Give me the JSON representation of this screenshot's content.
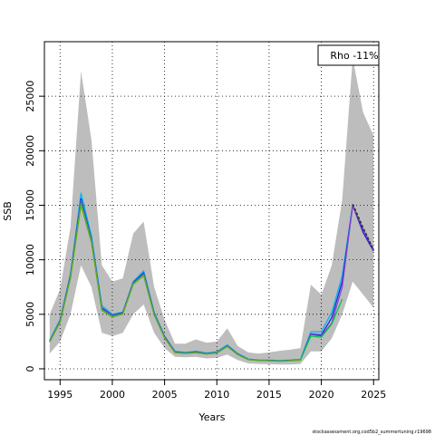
{
  "chart_data": {
    "type": "line",
    "title": "",
    "xlabel": "Years",
    "ylabel": "SSB",
    "xlim": [
      1993.5,
      2025.5
    ],
    "ylim": [
      -1000,
      30000
    ],
    "x_ticks": [
      1995,
      2000,
      2005,
      2010,
      2015,
      2020,
      2025
    ],
    "y_ticks": [
      0,
      5000,
      10000,
      15000,
      20000,
      25000
    ],
    "grid": "dotted",
    "legend": {
      "position": "top-right",
      "text": "Rho -11%"
    },
    "caption": "stockassessment.org,cod5b2_summertuning.r19698",
    "band": {
      "x": [
        1994,
        1995,
        1996,
        1997,
        1998,
        1999,
        2000,
        2001,
        2002,
        2003,
        2004,
        2005,
        2006,
        2007,
        2008,
        2009,
        2010,
        2011,
        2012,
        2013,
        2014,
        2015,
        2016,
        2017,
        2018,
        2019,
        2020,
        2021,
        2022,
        2023,
        2024,
        2025
      ],
      "lower": [
        1400,
        2500,
        5000,
        9500,
        7500,
        3300,
        3000,
        3300,
        5000,
        5900,
        3300,
        1900,
        1100,
        1050,
        1100,
        950,
        1000,
        1300,
        800,
        500,
        450,
        420,
        400,
        400,
        450,
        1600,
        1600,
        2800,
        5000,
        8000,
        6800,
        5600
      ],
      "upper": [
        5000,
        7300,
        13000,
        27300,
        21000,
        9500,
        8000,
        8300,
        12400,
        13500,
        7500,
        4500,
        2300,
        2300,
        2700,
        2400,
        2500,
        3700,
        2100,
        1500,
        1400,
        1500,
        1650,
        1750,
        1900,
        7700,
        6800,
        9500,
        15500,
        28500,
        23500,
        21400
      ]
    },
    "series": [
      {
        "color": "#00b8f0",
        "x": [
          1994,
          1995,
          1996,
          1997,
          1998,
          1999,
          2000,
          2001,
          2002,
          2003,
          2004,
          2005,
          2006,
          2007,
          2008,
          2009,
          2010,
          2011,
          2012,
          2013,
          2014,
          2015,
          2016,
          2017,
          2018,
          2019,
          2020,
          2021,
          2022,
          2023
        ],
        "values": [
          2600,
          4500,
          8700,
          16100,
          12200,
          5800,
          5000,
          5200,
          8000,
          9000,
          5200,
          3000,
          1600,
          1500,
          1600,
          1450,
          1550,
          2200,
          1400,
          900,
          800,
          800,
          750,
          800,
          850,
          3400,
          3400,
          5200,
          8500,
          15100
        ]
      },
      {
        "color": "#2222dd",
        "x": [
          1994,
          1995,
          1996,
          1997,
          1998,
          1999,
          2000,
          2001,
          2002,
          2003,
          2004,
          2005,
          2006,
          2007,
          2008,
          2009,
          2010,
          2011,
          2012,
          2013,
          2014,
          2015,
          2016,
          2017,
          2018,
          2019,
          2020,
          2021,
          2022,
          2023,
          2024,
          2025
        ],
        "values": [
          2550,
          4400,
          8600,
          15600,
          11900,
          5600,
          4900,
          5150,
          7900,
          8800,
          5100,
          2950,
          1550,
          1450,
          1550,
          1400,
          1500,
          2100,
          1350,
          870,
          780,
          770,
          720,
          770,
          820,
          3200,
          3100,
          4700,
          8000,
          15000,
          12500,
          10800
        ]
      },
      {
        "color": "#8844cc",
        "x": [
          1994,
          1995,
          1996,
          1997,
          1998,
          1999,
          2000,
          2001,
          2002,
          2003,
          2004,
          2005,
          2006,
          2007,
          2008,
          2009,
          2010,
          2011,
          2012,
          2013,
          2014,
          2015,
          2016,
          2017,
          2018,
          2019,
          2020,
          2021,
          2022,
          2023,
          2024,
          2025
        ],
        "values": [
          2520,
          4350,
          8500,
          15400,
          11800,
          5500,
          4850,
          5100,
          7850,
          8700,
          5050,
          2900,
          1520,
          1430,
          1520,
          1380,
          1480,
          2080,
          1330,
          860,
          770,
          760,
          710,
          760,
          810,
          3150,
          3000,
          4200,
          7500,
          15000,
          12800,
          10900
        ]
      },
      {
        "color": "#333333",
        "x": [
          2023,
          2024,
          2025
        ],
        "values": [
          15100,
          12900,
          10900
        ]
      },
      {
        "color": "#00cc44",
        "x": [
          1994,
          1995,
          1996,
          1997,
          1998,
          1999,
          2000,
          2001,
          2002,
          2003,
          2004,
          2005,
          2006,
          2007,
          2008,
          2009,
          2010,
          2011,
          2012,
          2013,
          2014,
          2015,
          2016,
          2017,
          2018,
          2019,
          2020,
          2021,
          2022
        ],
        "values": [
          2500,
          4300,
          8400,
          15200,
          11700,
          5400,
          4800,
          5050,
          7800,
          8600,
          5000,
          2850,
          1500,
          1420,
          1500,
          1370,
          1460,
          2050,
          1310,
          850,
          760,
          750,
          700,
          750,
          800,
          3000,
          2900,
          4100,
          6400
        ]
      },
      {
        "color": "#66aa22",
        "x": [
          1994,
          1995,
          1996,
          1997,
          1998,
          1999,
          2000,
          2001,
          2002,
          2003,
          2004,
          2005,
          2006,
          2007,
          2008,
          2009,
          2010,
          2011,
          2012,
          2013,
          2014,
          2015,
          2016,
          2017,
          2018
        ],
        "values": [
          2450,
          4250,
          8300,
          15000,
          11600,
          5350,
          4750,
          5000,
          7750,
          8550,
          4950,
          2820,
          1480,
          1400,
          1480,
          1350,
          1440,
          2030,
          1300,
          840,
          750,
          740,
          690,
          740,
          790
        ]
      }
    ]
  }
}
